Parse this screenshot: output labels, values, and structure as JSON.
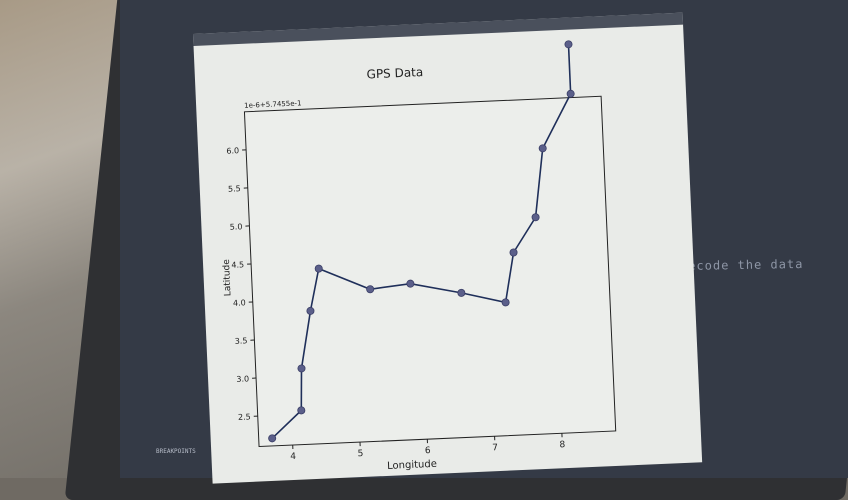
{
  "terminal": {
    "text": "decode the data",
    "sidebar_label": "BREAKPOINTS"
  },
  "chart_data": {
    "type": "line",
    "title": "GPS Data",
    "xlabel": "Longitude",
    "ylabel": "Latitude",
    "offset_label": "1e-6+5.7455e-1",
    "xlim": [
      3.5,
      8.8
    ],
    "ylim": [
      2.1,
      6.5
    ],
    "xticks": [
      4,
      5,
      6,
      7,
      8
    ],
    "yticks": [
      2.5,
      3.0,
      3.5,
      4.0,
      4.5,
      5.0,
      5.5,
      6.0
    ],
    "series": [
      {
        "x": [
          3.7,
          4.15,
          4.18,
          4.35,
          4.5,
          5.25,
          5.85,
          6.6,
          7.25,
          7.4,
          7.75,
          7.9,
          8.35,
          8.35
        ],
        "y": [
          2.2,
          2.55,
          3.1,
          3.85,
          4.4,
          4.1,
          4.15,
          4.0,
          3.85,
          4.5,
          4.95,
          5.85,
          6.55,
          7.2
        ]
      }
    ],
    "grid": false,
    "colors": {
      "line": "#1f2f5a",
      "marker": "#5b5f8a"
    }
  }
}
